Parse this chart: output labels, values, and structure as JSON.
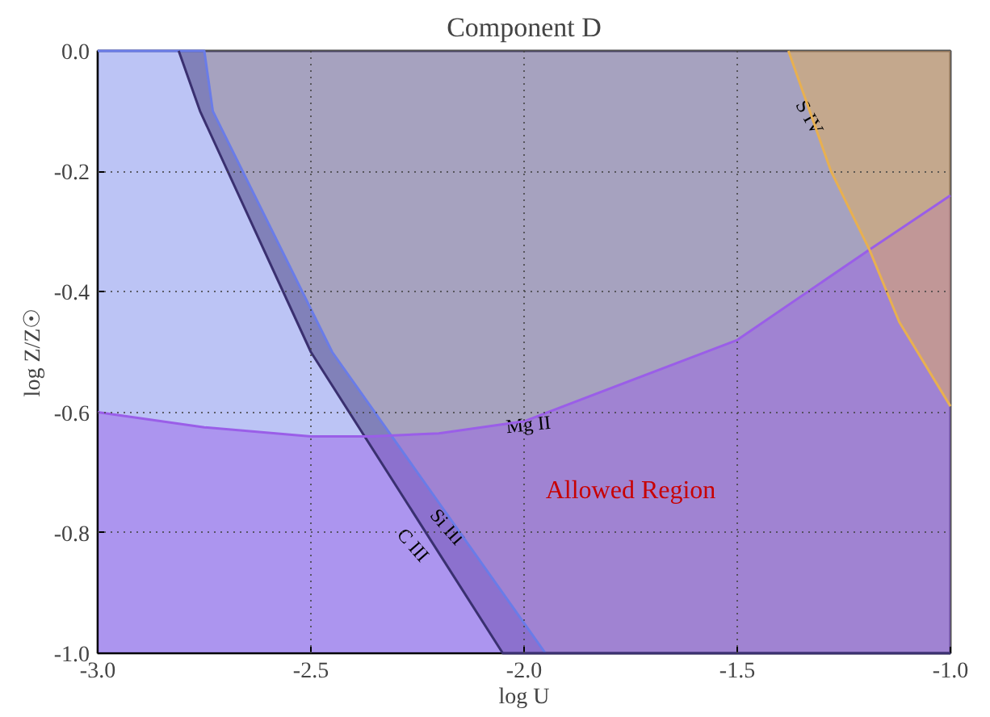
{
  "chart_data": {
    "type": "line",
    "title": "Component D",
    "xlabel": "log U",
    "ylabel": "log Z/Z☉",
    "xlim": [
      -3.0,
      -1.0
    ],
    "ylim": [
      -1.0,
      0.0
    ],
    "xticks": [
      {
        "value": -3.0,
        "label": "-3.0"
      },
      {
        "value": -2.5,
        "label": "-2.5"
      },
      {
        "value": -2.0,
        "label": "-2.0"
      },
      {
        "value": -1.5,
        "label": "-1.5"
      },
      {
        "value": -1.0,
        "label": "-1.0"
      }
    ],
    "yticks": [
      {
        "value": -1.0,
        "label": "-1.0"
      },
      {
        "value": -0.8,
        "label": "-0.8"
      },
      {
        "value": -0.6,
        "label": "-0.6"
      },
      {
        "value": -0.4,
        "label": "-0.4"
      },
      {
        "value": -0.2,
        "label": "-0.2"
      },
      {
        "value": 0.0,
        "label": "0.0"
      }
    ],
    "grid": true,
    "series": [
      {
        "color": "#6a7ce8",
        "x": [
          -3.0,
          -2.75,
          -2.73,
          -2.45,
          -1.95
        ],
        "values": [
          0.0,
          0.0,
          -0.1,
          -0.5,
          -1.0
        ],
        "lower": [
          -1.0,
          -1.0,
          -1.0,
          -1.0,
          -1.0
        ],
        "upper": [
          0.0,
          0.0,
          -0.1,
          -0.5,
          -1.0
        ]
      },
      {
        "color": "#3a3070",
        "x": [
          -2.81,
          -2.76,
          -2.5,
          -2.05,
          -1.0
        ],
        "values": [
          0.0,
          -0.1,
          -0.5,
          -1.0,
          -1.0
        ],
        "lower": [
          0.0,
          -0.1,
          -0.5,
          -1.0,
          -1.0
        ],
        "upper": [
          0.0,
          0.0,
          0.0,
          0.0,
          0.0
        ]
      },
      {
        "color": "#9a5ee8",
        "x": [
          -3.0,
          -2.75,
          -2.5,
          -2.36,
          -2.2,
          -2.0,
          -1.5,
          -1.19,
          -1.0
        ],
        "values": [
          -0.6,
          -0.625,
          -0.64,
          -0.64,
          -0.635,
          -0.615,
          -0.48,
          -0.33,
          -0.24
        ],
        "lower": [
          -1.0,
          -1.0,
          -1.0,
          -1.0,
          -1.0,
          -1.0,
          -1.0,
          -1.0,
          -1.0
        ],
        "upper": [
          -0.6,
          -0.625,
          -0.64,
          -0.64,
          -0.635,
          -0.615,
          -0.48,
          -0.33,
          -0.24
        ]
      },
      {
        "color": "#e8b050",
        "x": [
          -1.38,
          -1.28,
          -1.19,
          -1.12,
          -1.0
        ],
        "values": [
          0.0,
          -0.2,
          -0.33,
          -0.45,
          -0.59
        ],
        "lower": [
          0.0,
          -0.2,
          -0.33,
          -0.45,
          -0.59
        ],
        "upper": [
          0.0,
          0.0,
          0.0,
          0.0,
          0.0
        ]
      }
    ],
    "annotations": [
      {
        "text": "Mg II",
        "x": -1.99,
        "y": -0.62
      },
      {
        "text": "S IV",
        "x": -1.33,
        "y": -0.11
      },
      {
        "text": "Si III",
        "x": -2.18,
        "y": -0.79
      },
      "C III",
      "Allowed Region"
    ]
  }
}
